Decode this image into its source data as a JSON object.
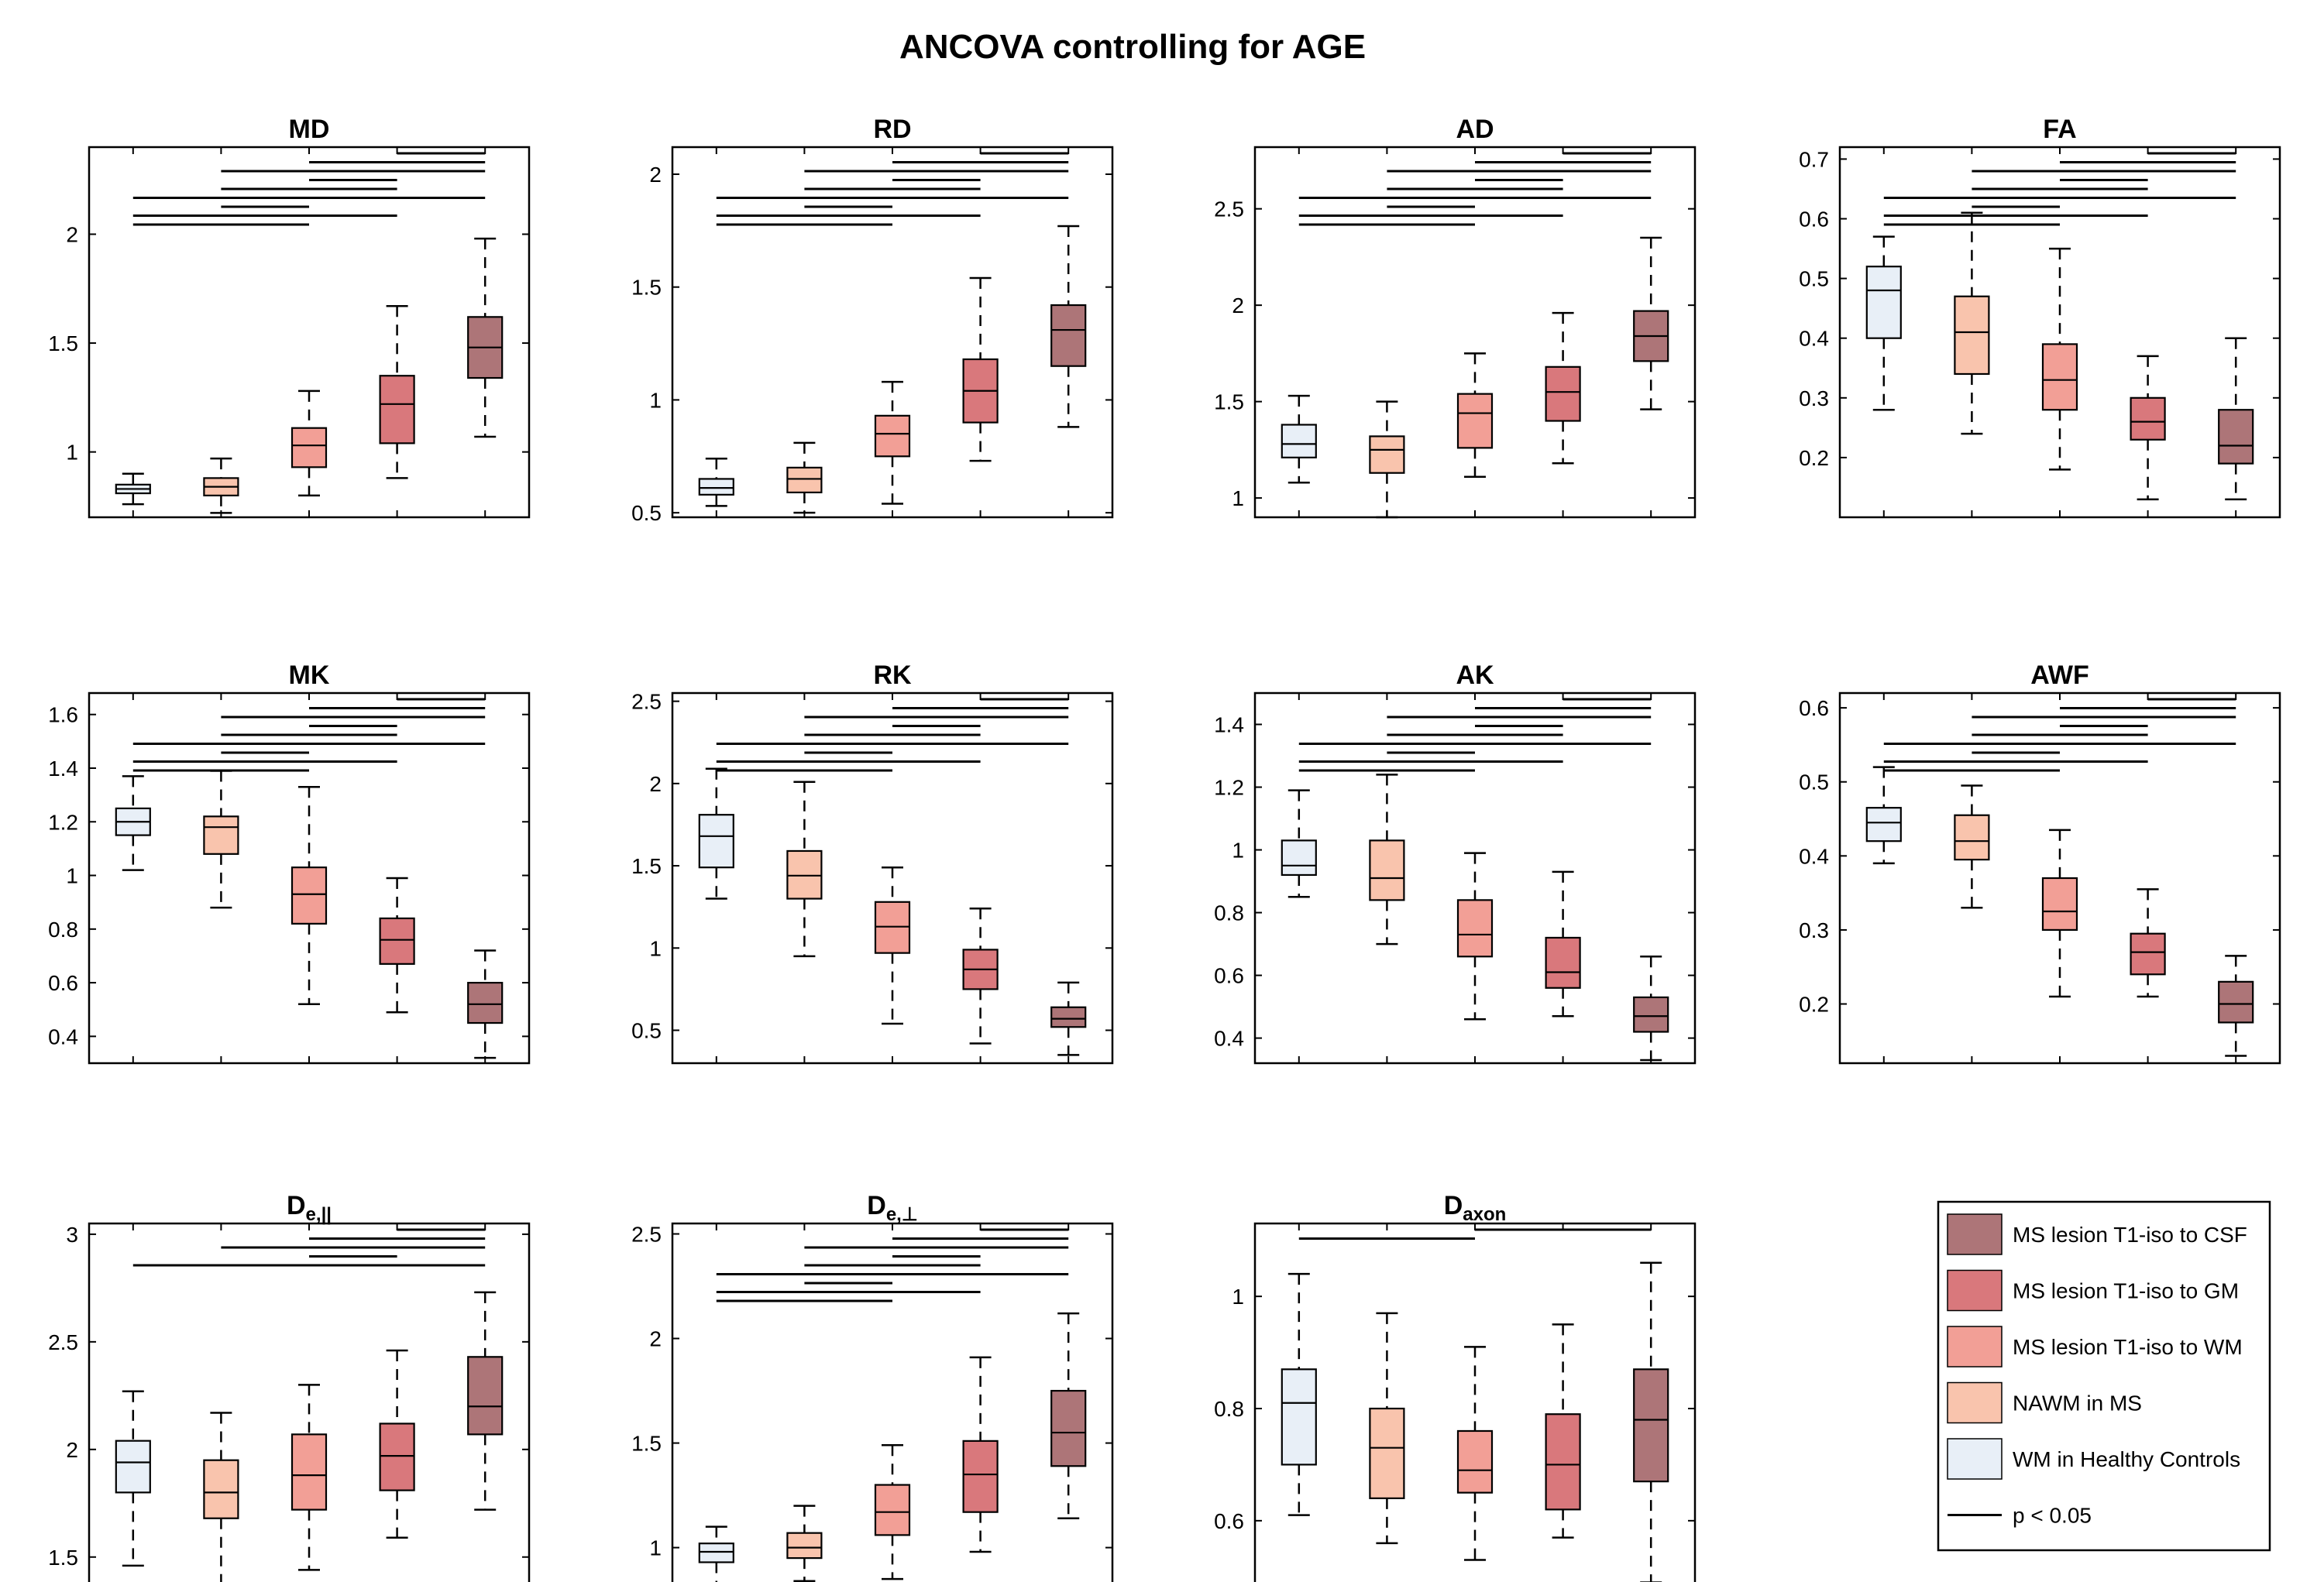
{
  "figure_title": "ANCOVA controlling for AGE",
  "chart_data": [
    {
      "id": "MD",
      "type": "boxplot",
      "title": "MD",
      "title_sub": "",
      "ylim": [
        0.7,
        2.4
      ],
      "yticks": [
        1,
        1.5,
        2
      ],
      "ytick_labels": [
        "1",
        "1.5",
        "2"
      ],
      "boxes": [
        {
          "min": 0.76,
          "q1": 0.81,
          "median": 0.83,
          "q3": 0.85,
          "max": 0.9
        },
        {
          "min": 0.72,
          "q1": 0.8,
          "median": 0.84,
          "q3": 0.88,
          "max": 0.97
        },
        {
          "min": 0.8,
          "q1": 0.93,
          "median": 1.03,
          "q3": 1.11,
          "max": 1.28
        },
        {
          "min": 0.88,
          "q1": 1.04,
          "median": 1.22,
          "q3": 1.35,
          "max": 1.67
        },
        {
          "min": 1.07,
          "q1": 1.34,
          "median": 1.48,
          "q3": 1.62,
          "max": 1.98
        }
      ],
      "significance": [
        [
          4,
          5
        ],
        [
          3,
          5
        ],
        [
          2,
          5
        ],
        [
          3,
          4
        ],
        [
          2,
          4
        ],
        [
          1,
          5
        ],
        [
          2,
          3
        ],
        [
          1,
          4
        ],
        [
          1,
          3
        ]
      ]
    },
    {
      "id": "RD",
      "type": "boxplot",
      "title": "RD",
      "title_sub": "",
      "ylim": [
        0.48,
        2.12
      ],
      "yticks": [
        0.5,
        1,
        1.5,
        2
      ],
      "ytick_labels": [
        "0.5",
        "1",
        "1.5",
        "2"
      ],
      "boxes": [
        {
          "min": 0.53,
          "q1": 0.58,
          "median": 0.61,
          "q3": 0.65,
          "max": 0.74
        },
        {
          "min": 0.5,
          "q1": 0.59,
          "median": 0.65,
          "q3": 0.7,
          "max": 0.81
        },
        {
          "min": 0.54,
          "q1": 0.75,
          "median": 0.85,
          "q3": 0.93,
          "max": 1.08
        },
        {
          "min": 0.73,
          "q1": 0.9,
          "median": 1.04,
          "q3": 1.18,
          "max": 1.54
        },
        {
          "min": 0.88,
          "q1": 1.15,
          "median": 1.31,
          "q3": 1.42,
          "max": 1.77
        }
      ],
      "significance": [
        [
          4,
          5
        ],
        [
          3,
          5
        ],
        [
          2,
          5
        ],
        [
          3,
          4
        ],
        [
          2,
          4
        ],
        [
          1,
          5
        ],
        [
          2,
          3
        ],
        [
          1,
          4
        ],
        [
          1,
          3
        ]
      ]
    },
    {
      "id": "AD",
      "type": "boxplot",
      "title": "AD",
      "title_sub": "",
      "ylim": [
        0.9,
        2.82
      ],
      "yticks": [
        1,
        1.5,
        2,
        2.5
      ],
      "ytick_labels": [
        "1",
        "1.5",
        "2",
        "2.5"
      ],
      "boxes": [
        {
          "min": 1.08,
          "q1": 1.21,
          "median": 1.28,
          "q3": 1.38,
          "max": 1.53
        },
        {
          "min": 0.9,
          "q1": 1.13,
          "median": 1.25,
          "q3": 1.32,
          "max": 1.5
        },
        {
          "min": 1.11,
          "q1": 1.26,
          "median": 1.44,
          "q3": 1.54,
          "max": 1.75
        },
        {
          "min": 1.18,
          "q1": 1.4,
          "median": 1.55,
          "q3": 1.68,
          "max": 1.96
        },
        {
          "min": 1.46,
          "q1": 1.71,
          "median": 1.84,
          "q3": 1.97,
          "max": 2.35
        }
      ],
      "significance": [
        [
          4,
          5
        ],
        [
          3,
          5
        ],
        [
          2,
          5
        ],
        [
          3,
          4
        ],
        [
          2,
          4
        ],
        [
          1,
          5
        ],
        [
          2,
          3
        ],
        [
          1,
          4
        ],
        [
          1,
          3
        ]
      ]
    },
    {
      "id": "FA",
      "type": "boxplot",
      "title": "FA",
      "title_sub": "",
      "ylim": [
        0.1,
        0.72
      ],
      "yticks": [
        0.2,
        0.3,
        0.4,
        0.5,
        0.6,
        0.7
      ],
      "ytick_labels": [
        "0.2",
        "0.3",
        "0.4",
        "0.5",
        "0.6",
        "0.7"
      ],
      "boxes": [
        {
          "min": 0.28,
          "q1": 0.4,
          "median": 0.48,
          "q3": 0.52,
          "max": 0.57
        },
        {
          "min": 0.24,
          "q1": 0.34,
          "median": 0.41,
          "q3": 0.47,
          "max": 0.61
        },
        {
          "min": 0.18,
          "q1": 0.28,
          "median": 0.33,
          "q3": 0.39,
          "max": 0.55
        },
        {
          "min": 0.13,
          "q1": 0.23,
          "median": 0.26,
          "q3": 0.3,
          "max": 0.37
        },
        {
          "min": 0.13,
          "q1": 0.19,
          "median": 0.22,
          "q3": 0.28,
          "max": 0.4
        }
      ],
      "significance": [
        [
          4,
          5
        ],
        [
          3,
          5
        ],
        [
          2,
          5
        ],
        [
          3,
          4
        ],
        [
          2,
          4
        ],
        [
          1,
          5
        ],
        [
          2,
          3
        ],
        [
          1,
          4
        ],
        [
          1,
          3
        ]
      ]
    },
    {
      "id": "MK",
      "type": "boxplot",
      "title": "MK",
      "title_sub": "",
      "ylim": [
        0.3,
        1.68
      ],
      "yticks": [
        0.4,
        0.6,
        0.8,
        1,
        1.2,
        1.4,
        1.6
      ],
      "ytick_labels": [
        "0.4",
        "0.6",
        "0.8",
        "1",
        "1.2",
        "1.4",
        "1.6"
      ],
      "boxes": [
        {
          "min": 1.02,
          "q1": 1.15,
          "median": 1.2,
          "q3": 1.25,
          "max": 1.37
        },
        {
          "min": 0.88,
          "q1": 1.08,
          "median": 1.18,
          "q3": 1.22,
          "max": 1.39
        },
        {
          "min": 0.52,
          "q1": 0.82,
          "median": 0.93,
          "q3": 1.03,
          "max": 1.33
        },
        {
          "min": 0.49,
          "q1": 0.67,
          "median": 0.76,
          "q3": 0.84,
          "max": 0.99
        },
        {
          "min": 0.32,
          "q1": 0.45,
          "median": 0.52,
          "q3": 0.6,
          "max": 0.72
        }
      ],
      "significance": [
        [
          4,
          5
        ],
        [
          3,
          5
        ],
        [
          2,
          5
        ],
        [
          3,
          4
        ],
        [
          2,
          4
        ],
        [
          1,
          5
        ],
        [
          2,
          3
        ],
        [
          1,
          4
        ],
        [
          1,
          3
        ]
      ]
    },
    {
      "id": "RK",
      "type": "boxplot",
      "title": "RK",
      "title_sub": "",
      "ylim": [
        0.3,
        2.55
      ],
      "yticks": [
        0.5,
        1,
        1.5,
        2,
        2.5
      ],
      "ytick_labels": [
        "0.5",
        "1",
        "1.5",
        "2",
        "2.5"
      ],
      "boxes": [
        {
          "min": 1.3,
          "q1": 1.49,
          "median": 1.68,
          "q3": 1.81,
          "max": 2.09
        },
        {
          "min": 0.95,
          "q1": 1.3,
          "median": 1.44,
          "q3": 1.59,
          "max": 2.01
        },
        {
          "min": 0.54,
          "q1": 0.97,
          "median": 1.13,
          "q3": 1.28,
          "max": 1.49
        },
        {
          "min": 0.42,
          "q1": 0.75,
          "median": 0.87,
          "q3": 0.99,
          "max": 1.24
        },
        {
          "min": 0.35,
          "q1": 0.52,
          "median": 0.57,
          "q3": 0.64,
          "max": 0.79
        }
      ],
      "significance": [
        [
          4,
          5
        ],
        [
          3,
          5
        ],
        [
          2,
          5
        ],
        [
          3,
          4
        ],
        [
          2,
          4
        ],
        [
          1,
          5
        ],
        [
          2,
          3
        ],
        [
          1,
          4
        ],
        [
          1,
          3
        ]
      ]
    },
    {
      "id": "AK",
      "type": "boxplot",
      "title": "AK",
      "title_sub": "",
      "ylim": [
        0.32,
        1.5
      ],
      "yticks": [
        0.4,
        0.6,
        0.8,
        1,
        1.2,
        1.4
      ],
      "ytick_labels": [
        "0.4",
        "0.6",
        "0.8",
        "1",
        "1.2",
        "1.4"
      ],
      "boxes": [
        {
          "min": 0.85,
          "q1": 0.92,
          "median": 0.95,
          "q3": 1.03,
          "max": 1.19
        },
        {
          "min": 0.7,
          "q1": 0.84,
          "median": 0.91,
          "q3": 1.03,
          "max": 1.24
        },
        {
          "min": 0.46,
          "q1": 0.66,
          "median": 0.73,
          "q3": 0.84,
          "max": 0.99
        },
        {
          "min": 0.47,
          "q1": 0.56,
          "median": 0.61,
          "q3": 0.72,
          "max": 0.93
        },
        {
          "min": 0.33,
          "q1": 0.42,
          "median": 0.47,
          "q3": 0.53,
          "max": 0.66
        }
      ],
      "significance": [
        [
          4,
          5
        ],
        [
          3,
          5
        ],
        [
          2,
          5
        ],
        [
          3,
          4
        ],
        [
          2,
          4
        ],
        [
          1,
          5
        ],
        [
          2,
          3
        ],
        [
          1,
          4
        ],
        [
          1,
          3
        ]
      ]
    },
    {
      "id": "AWF",
      "type": "boxplot",
      "title": "AWF",
      "title_sub": "",
      "ylim": [
        0.12,
        0.62
      ],
      "yticks": [
        0.2,
        0.3,
        0.4,
        0.5,
        0.6
      ],
      "ytick_labels": [
        "0.2",
        "0.3",
        "0.4",
        "0.5",
        "0.6"
      ],
      "boxes": [
        {
          "min": 0.39,
          "q1": 0.42,
          "median": 0.445,
          "q3": 0.465,
          "max": 0.52
        },
        {
          "min": 0.33,
          "q1": 0.395,
          "median": 0.42,
          "q3": 0.455,
          "max": 0.495
        },
        {
          "min": 0.21,
          "q1": 0.3,
          "median": 0.325,
          "q3": 0.37,
          "max": 0.435
        },
        {
          "min": 0.21,
          "q1": 0.24,
          "median": 0.27,
          "q3": 0.295,
          "max": 0.355
        },
        {
          "min": 0.13,
          "q1": 0.175,
          "median": 0.2,
          "q3": 0.23,
          "max": 0.265
        }
      ],
      "significance": [
        [
          4,
          5
        ],
        [
          3,
          5
        ],
        [
          2,
          5
        ],
        [
          3,
          4
        ],
        [
          2,
          4
        ],
        [
          1,
          5
        ],
        [
          2,
          3
        ],
        [
          1,
          4
        ],
        [
          1,
          3
        ]
      ]
    },
    {
      "id": "De_par",
      "type": "boxplot",
      "title": "D",
      "title_sub": "e,||",
      "ylim": [
        1.33,
        3.05
      ],
      "yticks": [
        1.5,
        2,
        2.5,
        3
      ],
      "ytick_labels": [
        "1.5",
        "2",
        "2.5",
        "3"
      ],
      "boxes": [
        {
          "min": 1.46,
          "q1": 1.8,
          "median": 1.94,
          "q3": 2.04,
          "max": 2.27
        },
        {
          "min": 1.33,
          "q1": 1.68,
          "median": 1.8,
          "q3": 1.95,
          "max": 2.17
        },
        {
          "min": 1.44,
          "q1": 1.72,
          "median": 1.88,
          "q3": 2.07,
          "max": 2.3
        },
        {
          "min": 1.59,
          "q1": 1.81,
          "median": 1.97,
          "q3": 2.12,
          "max": 2.46
        },
        {
          "min": 1.72,
          "q1": 2.07,
          "median": 2.2,
          "q3": 2.43,
          "max": 2.73
        }
      ],
      "significance": [
        [
          4,
          5
        ],
        [
          3,
          5
        ],
        [
          2,
          5
        ],
        [
          3,
          4
        ],
        [
          1,
          5
        ]
      ]
    },
    {
      "id": "De_perp",
      "type": "boxplot",
      "title": "D",
      "title_sub": "e,⊥",
      "ylim": [
        0.78,
        2.55
      ],
      "yticks": [
        1,
        1.5,
        2,
        2.5
      ],
      "ytick_labels": [
        "1",
        "1.5",
        "2",
        "2.5"
      ],
      "boxes": [
        {
          "min": 0.8,
          "q1": 0.93,
          "median": 0.98,
          "q3": 1.02,
          "max": 1.1
        },
        {
          "min": 0.84,
          "q1": 0.95,
          "median": 1.0,
          "q3": 1.07,
          "max": 1.2
        },
        {
          "min": 0.85,
          "q1": 1.06,
          "median": 1.17,
          "q3": 1.3,
          "max": 1.49
        },
        {
          "min": 0.98,
          "q1": 1.17,
          "median": 1.35,
          "q3": 1.51,
          "max": 1.91
        },
        {
          "min": 1.14,
          "q1": 1.39,
          "median": 1.55,
          "q3": 1.75,
          "max": 2.12
        }
      ],
      "significance": [
        [
          4,
          5
        ],
        [
          3,
          5
        ],
        [
          2,
          5
        ],
        [
          3,
          4
        ],
        [
          2,
          4
        ],
        [
          1,
          5
        ],
        [
          2,
          3
        ],
        [
          1,
          4
        ],
        [
          1,
          3
        ]
      ]
    },
    {
      "id": "Daxon",
      "type": "boxplot",
      "title": "D",
      "title_sub": "axon",
      "ylim": [
        0.47,
        1.13
      ],
      "yticks": [
        0.6,
        0.8,
        1
      ],
      "ytick_labels": [
        "0.6",
        "0.8",
        "1"
      ],
      "boxes": [
        {
          "min": 0.61,
          "q1": 0.7,
          "median": 0.81,
          "q3": 0.87,
          "max": 1.04
        },
        {
          "min": 0.56,
          "q1": 0.64,
          "median": 0.73,
          "q3": 0.8,
          "max": 0.97
        },
        {
          "min": 0.53,
          "q1": 0.65,
          "median": 0.69,
          "q3": 0.76,
          "max": 0.91
        },
        {
          "min": 0.57,
          "q1": 0.62,
          "median": 0.7,
          "q3": 0.79,
          "max": 0.95
        },
        {
          "min": 0.49,
          "q1": 0.67,
          "median": 0.78,
          "q3": 0.87,
          "max": 1.06
        }
      ],
      "significance": [
        [
          3,
          5
        ],
        [
          1,
          3
        ]
      ]
    }
  ],
  "groups": [
    {
      "label": "WM in Healthy Controls",
      "color": "#E8EFF7"
    },
    {
      "label": "NAWM in MS",
      "color": "#F9C4AD"
    },
    {
      "label": "MS lesion T1-iso to WM",
      "color": "#F29F96"
    },
    {
      "label": "MS lesion T1-iso to GM",
      "color": "#D9787C"
    },
    {
      "label": "MS lesion T1-iso to CSF",
      "color": "#AD7578"
    }
  ],
  "legend": {
    "items": [
      {
        "label": "MS lesion T1-iso to CSF",
        "color": "#AD7578"
      },
      {
        "label": "MS lesion T1-iso to GM",
        "color": "#D9787C"
      },
      {
        "label": "MS lesion T1-iso to WM",
        "color": "#F29F96"
      },
      {
        "label": "NAWM in MS",
        "color": "#F9C4AD"
      },
      {
        "label": "WM in Healthy Controls",
        "color": "#E8EFF7"
      }
    ],
    "line_label": "p < 0.05",
    "placement": "bottom-right"
  }
}
